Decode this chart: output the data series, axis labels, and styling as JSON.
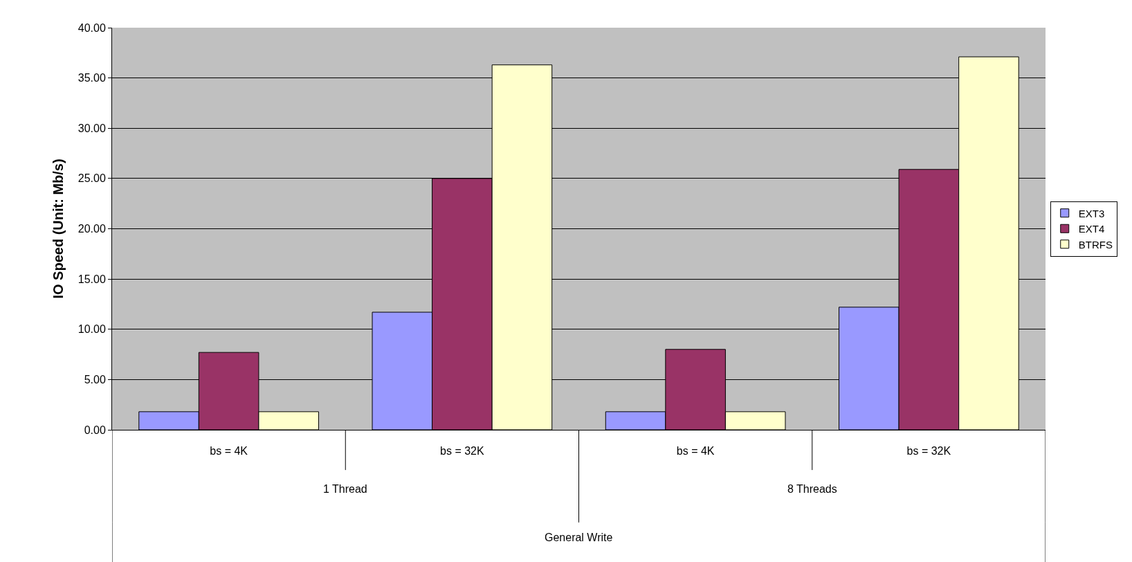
{
  "chart_data": {
    "type": "bar",
    "ylabel": "IO Speed (Unit: Mb/s)",
    "categories": [
      "bs = 4K",
      "bs = 32K",
      "bs = 4K",
      "bs = 32K"
    ],
    "series": [
      {
        "name": "EXT3",
        "color": "#9999ff",
        "values": [
          1.8,
          11.7,
          1.8,
          12.2
        ]
      },
      {
        "name": "EXT4",
        "color": "#993366",
        "values": [
          7.7,
          25.0,
          8.0,
          25.9
        ]
      },
      {
        "name": "BTRFS",
        "color": "#ffffcc",
        "values": [
          1.8,
          36.3,
          1.8,
          37.1
        ]
      }
    ],
    "annotations": [
      "1 Thread",
      "8 Threads",
      "General Write"
    ],
    "ylim": [
      0,
      40
    ],
    "yticks": [
      {
        "value": 0,
        "label": "0.00"
      },
      {
        "value": 5,
        "label": "5.00"
      },
      {
        "value": 10,
        "label": "10.00"
      },
      {
        "value": 15,
        "label": "15.00"
      },
      {
        "value": 20,
        "label": "20.00"
      },
      {
        "value": 25,
        "label": "25.00"
      },
      {
        "value": 30,
        "label": "30.00"
      },
      {
        "value": 35,
        "label": "35.00"
      },
      {
        "value": 40,
        "label": "40.00"
      }
    ],
    "grid": "y",
    "legend": "right"
  }
}
